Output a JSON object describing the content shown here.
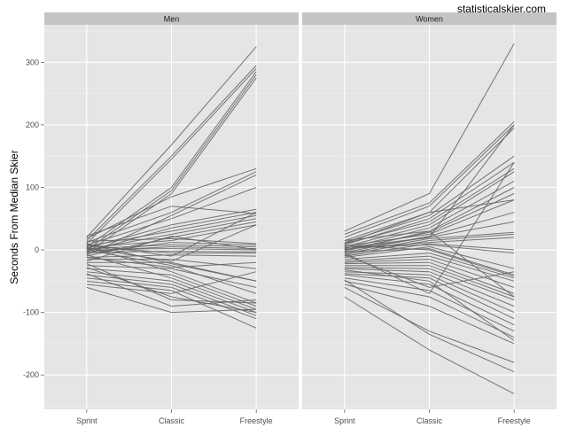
{
  "watermark": "statisticalskier.com",
  "colors": {
    "line": "#666666",
    "panel": "#e5e5e5",
    "strip": "#c4c4c4"
  },
  "chart_data": {
    "type": "line",
    "facets": [
      "Men",
      "Women"
    ],
    "categories": [
      "Sprint",
      "Classic",
      "Freestyle"
    ],
    "ylabel": "Seconds From Median Skier",
    "xlabel": "",
    "ylim": [
      -255,
      360
    ],
    "yticks": [
      -200,
      -100,
      0,
      100,
      200,
      300
    ],
    "grid": true,
    "series": {
      "Men": [
        [
          20,
          168,
          325
        ],
        [
          15,
          150,
          295
        ],
        [
          10,
          145,
          290
        ],
        [
          5,
          100,
          285
        ],
        [
          0,
          95,
          280
        ],
        [
          -5,
          90,
          275
        ],
        [
          18,
          85,
          130
        ],
        [
          12,
          60,
          125
        ],
        [
          -8,
          55,
          120
        ],
        [
          8,
          50,
          100
        ],
        [
          3,
          40,
          65
        ],
        [
          -3,
          35,
          60
        ],
        [
          6,
          30,
          55
        ],
        [
          0,
          25,
          50
        ],
        [
          -10,
          20,
          45
        ],
        [
          4,
          15,
          40
        ],
        [
          -6,
          12,
          8
        ],
        [
          2,
          8,
          5
        ],
        [
          -2,
          5,
          2
        ],
        [
          1,
          2,
          0
        ],
        [
          -4,
          -2,
          -3
        ],
        [
          7,
          -5,
          -5
        ],
        [
          -12,
          -8,
          -10
        ],
        [
          9,
          -10,
          60
        ],
        [
          -15,
          -15,
          -30
        ],
        [
          3,
          -18,
          40
        ],
        [
          -20,
          -20,
          -50
        ],
        [
          0,
          -25,
          -70
        ],
        [
          -25,
          -30,
          -60
        ],
        [
          5,
          -35,
          -85
        ],
        [
          -30,
          -40,
          -90
        ],
        [
          -8,
          -45,
          -95
        ],
        [
          -35,
          -50,
          -100
        ],
        [
          -40,
          -55,
          -105
        ],
        [
          -45,
          -60,
          -110
        ],
        [
          -50,
          -65,
          -125
        ],
        [
          -55,
          -70,
          -35
        ],
        [
          -60,
          -100,
          -95
        ],
        [
          -38,
          -90,
          -80
        ],
        [
          -22,
          -80,
          -85
        ],
        [
          -12,
          -28,
          -20
        ],
        [
          10,
          -22,
          -50
        ],
        [
          14,
          18,
          10
        ],
        [
          -18,
          22,
          0
        ],
        [
          22,
          70,
          58
        ],
        [
          -28,
          -75,
          -100
        ]
      ],
      "Women": [
        [
          30,
          90,
          330
        ],
        [
          25,
          75,
          205
        ],
        [
          20,
          70,
          200
        ],
        [
          15,
          60,
          195
        ],
        [
          12,
          55,
          150
        ],
        [
          8,
          50,
          140
        ],
        [
          10,
          45,
          130
        ],
        [
          5,
          40,
          125
        ],
        [
          2,
          35,
          110
        ],
        [
          -2,
          30,
          100
        ],
        [
          0,
          28,
          90
        ],
        [
          6,
          25,
          80
        ],
        [
          -4,
          22,
          60
        ],
        [
          3,
          20,
          45
        ],
        [
          -6,
          18,
          28
        ],
        [
          -8,
          15,
          25
        ],
        [
          1,
          12,
          20
        ],
        [
          -10,
          10,
          0
        ],
        [
          4,
          8,
          -5
        ],
        [
          -12,
          5,
          -30
        ],
        [
          -3,
          2,
          -40
        ],
        [
          7,
          0,
          -42
        ],
        [
          -15,
          -5,
          -45
        ],
        [
          -18,
          -10,
          -50
        ],
        [
          -20,
          -15,
          -60
        ],
        [
          -22,
          -20,
          -70
        ],
        [
          -25,
          -25,
          -75
        ],
        [
          -28,
          -30,
          -80
        ],
        [
          -30,
          -35,
          -90
        ],
        [
          -35,
          -40,
          -100
        ],
        [
          -38,
          -45,
          -110
        ],
        [
          -40,
          -55,
          -120
        ],
        [
          -45,
          -65,
          -130
        ],
        [
          -50,
          -75,
          -140
        ],
        [
          -55,
          -90,
          -150
        ],
        [
          -60,
          -130,
          -180
        ],
        [
          -75,
          -160,
          -230
        ],
        [
          -48,
          -135,
          -195
        ],
        [
          -5,
          -70,
          140
        ],
        [
          0,
          20,
          200
        ],
        [
          10,
          60,
          80
        ],
        [
          -8,
          -60,
          -35
        ],
        [
          15,
          30,
          -75
        ],
        [
          -32,
          -50,
          -145
        ]
      ]
    }
  }
}
